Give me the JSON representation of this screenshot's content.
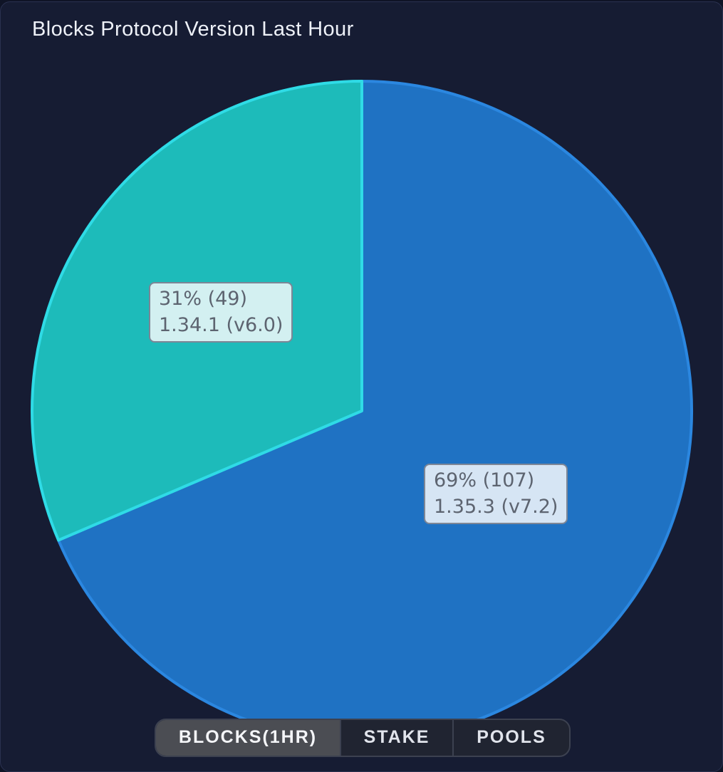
{
  "chart_data": {
    "type": "pie",
    "title": "Blocks Protocol Version Last Hour",
    "slices": [
      {
        "name": "1.35.3 (v7.2)",
        "percent_label": "69% (107)",
        "version_label": "1.35.3 (v7.2)",
        "value": 107,
        "percent": 69,
        "color": "#1f72c3",
        "stroke": "#2b87e0",
        "label_bg": "#d6e5f4"
      },
      {
        "name": "1.34.1 (v6.0)",
        "percent_label": "31% (49)",
        "version_label": "1.34.1 (v6.0)",
        "value": 49,
        "percent": 31,
        "color": "#1dbbba",
        "stroke": "#2fdbe6",
        "label_bg": "#d3f0f1"
      }
    ]
  },
  "tabs": [
    {
      "label": "BLOCKS(1HR)",
      "active": true
    },
    {
      "label": "STAKE",
      "active": false
    },
    {
      "label": "POOLS",
      "active": false
    }
  ],
  "colors": {
    "background": "#161c33",
    "title": "#eef1f8"
  }
}
